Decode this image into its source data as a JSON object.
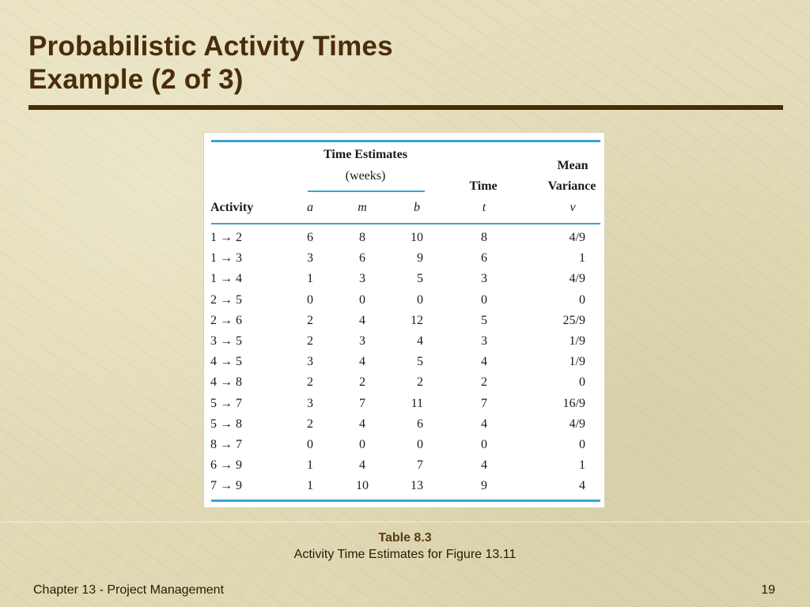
{
  "slide": {
    "title_line1": "Probabilistic Activity Times",
    "title_line2": "Example (2 of 3)"
  },
  "table": {
    "header": {
      "group_line1": "Time Estimates",
      "group_line2": "(weeks)",
      "activity": "Activity",
      "a": "a",
      "m": "m",
      "b": "b",
      "time_label": "Time",
      "t": "t",
      "mean_label": "Mean",
      "variance_label": "Variance",
      "v": "v"
    },
    "rows": [
      {
        "activity": "1 → 2",
        "a": "6",
        "m": "8",
        "b": "10",
        "t": "8",
        "v": "4/9"
      },
      {
        "activity": "1 → 3",
        "a": "3",
        "m": "6",
        "b": "9",
        "t": "6",
        "v": "1"
      },
      {
        "activity": "1 → 4",
        "a": "1",
        "m": "3",
        "b": "5",
        "t": "3",
        "v": "4/9"
      },
      {
        "activity": "2 → 5",
        "a": "0",
        "m": "0",
        "b": "0",
        "t": "0",
        "v": "0"
      },
      {
        "activity": "2 → 6",
        "a": "2",
        "m": "4",
        "b": "12",
        "t": "5",
        "v": "25/9"
      },
      {
        "activity": "3 → 5",
        "a": "2",
        "m": "3",
        "b": "4",
        "t": "3",
        "v": "1/9"
      },
      {
        "activity": "4 → 5",
        "a": "3",
        "m": "4",
        "b": "5",
        "t": "4",
        "v": "1/9"
      },
      {
        "activity": "4 → 8",
        "a": "2",
        "m": "2",
        "b": "2",
        "t": "2",
        "v": "0"
      },
      {
        "activity": "5 → 7",
        "a": "3",
        "m": "7",
        "b": "11",
        "t": "7",
        "v": "16/9"
      },
      {
        "activity": "5 → 8",
        "a": "2",
        "m": "4",
        "b": "6",
        "t": "4",
        "v": "4/9"
      },
      {
        "activity": "8 → 7",
        "a": "0",
        "m": "0",
        "b": "0",
        "t": "0",
        "v": "0"
      },
      {
        "activity": "6 → 9",
        "a": "1",
        "m": "4",
        "b": "7",
        "t": "4",
        "v": "1"
      },
      {
        "activity": "7 → 9",
        "a": "1",
        "m": "10",
        "b": "13",
        "t": "9",
        "v": "4"
      }
    ]
  },
  "caption": {
    "title": "Table 8.3",
    "subtitle": "Activity Time Estimates for Figure 13.11"
  },
  "footer": {
    "chapter": "Chapter 13 - Project Management",
    "page": "19"
  }
}
